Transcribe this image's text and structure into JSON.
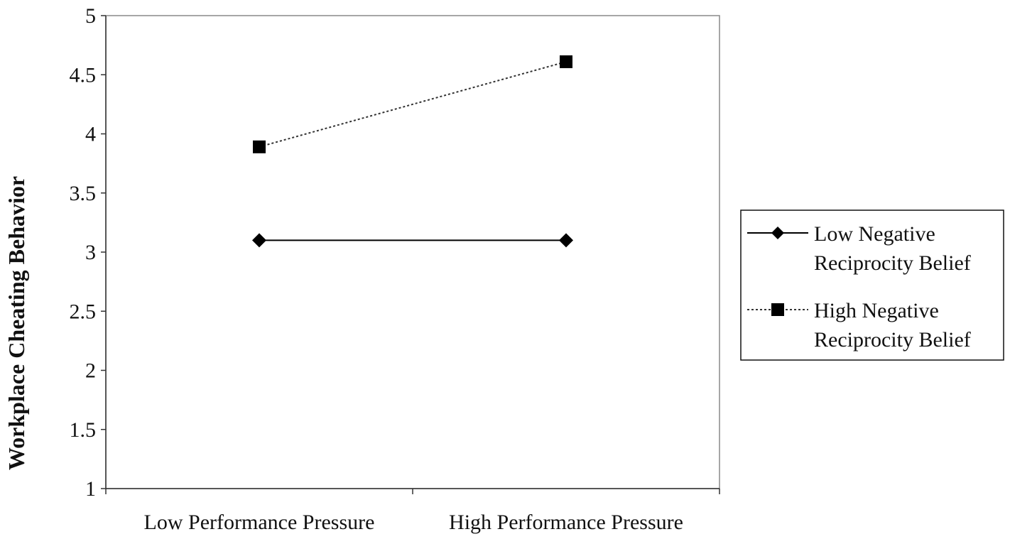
{
  "chart_data": {
    "type": "line",
    "title": "",
    "xlabel": "",
    "ylabel": "Workplace  Cheating  Behavior",
    "categories": [
      "Low Performance Pressure",
      "High Performance Pressure"
    ],
    "ylim": [
      1,
      5
    ],
    "yticks": [
      "1",
      "1.5",
      "2",
      "2.5",
      "3",
      "3.5",
      "4",
      "4.5",
      "5"
    ],
    "grid": false,
    "legend_position": "right",
    "series": [
      {
        "name_lines": [
          "Low Negative",
          "Reciprocity Belief"
        ],
        "values": [
          3.1,
          3.1
        ],
        "marker": "diamond",
        "line_style": "solid",
        "color": "#000000"
      },
      {
        "name_lines": [
          "High Negative",
          "Reciprocity Belief"
        ],
        "values": [
          3.89,
          4.61
        ],
        "marker": "square",
        "line_style": "dotted",
        "color": "#000000"
      }
    ]
  }
}
